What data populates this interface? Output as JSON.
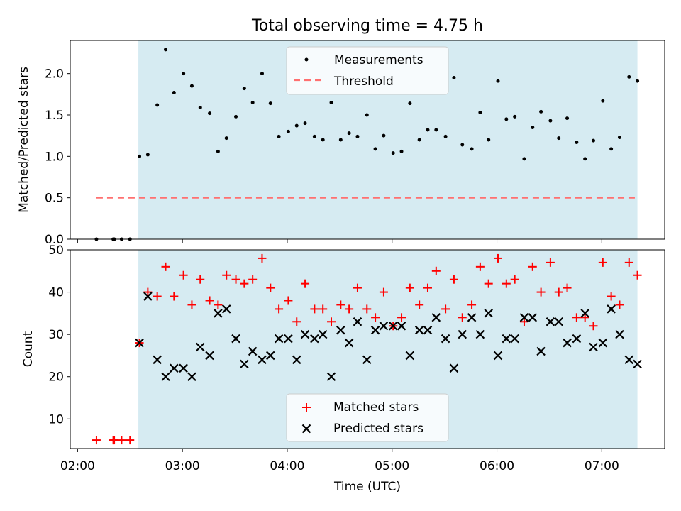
{
  "figure": {
    "title": "Total observing time = 4.75 h",
    "colors": {
      "shade": "#add8e6",
      "threshold": "#ff7070",
      "measurement": "#000000",
      "matched": "#ff0000",
      "predicted": "#000000"
    }
  },
  "chart_data": [
    {
      "type": "scatter",
      "panel": "top",
      "xlabel": "",
      "ylabel": "Matched/Predicted stars",
      "xlim": [
        1.93,
        7.6
      ],
      "ylim": [
        0,
        2.4
      ],
      "yticks": [
        0.0,
        0.5,
        1.0,
        1.5,
        2.0
      ],
      "ytick_labels": [
        "0.0",
        "0.5",
        "1.0",
        "1.5",
        "2.0"
      ],
      "xticks": [
        2,
        3,
        4,
        5,
        6,
        7
      ],
      "shaded_span": [
        2.58,
        7.34
      ],
      "legend": {
        "position": "top-center",
        "entries": [
          "Measurements",
          "Threshold"
        ]
      },
      "series": [
        {
          "name": "Measurements",
          "x": [
            2.18,
            2.34,
            2.35,
            2.42,
            2.5,
            2.59,
            2.67,
            2.76,
            2.84,
            2.92,
            3.01,
            3.09,
            3.17,
            3.26,
            3.34,
            3.42,
            3.51,
            3.59,
            3.67,
            3.76,
            3.84,
            3.92,
            4.01,
            4.09,
            4.17,
            4.26,
            4.34,
            4.42,
            4.51,
            4.59,
            4.67,
            4.76,
            4.84,
            4.92,
            5.01,
            5.09,
            5.17,
            5.26,
            5.34,
            5.42,
            5.51,
            5.59,
            5.67,
            5.76,
            5.84,
            5.92,
            6.01,
            6.09,
            6.17,
            6.26,
            6.34,
            6.42,
            6.51,
            6.59,
            6.67,
            6.76,
            6.84,
            6.92,
            7.01,
            7.09,
            7.17,
            7.26,
            7.34
          ],
          "y": [
            0,
            0,
            0,
            0,
            0,
            1.0,
            1.02,
            1.62,
            2.29,
            1.77,
            2.0,
            1.85,
            1.59,
            1.52,
            1.06,
            1.22,
            1.48,
            1.82,
            1.65,
            2.0,
            1.64,
            1.24,
            1.3,
            1.37,
            1.4,
            1.24,
            1.2,
            1.65,
            1.2,
            1.28,
            1.24,
            1.5,
            1.09,
            1.25,
            1.04,
            1.06,
            1.64,
            1.2,
            1.32,
            1.32,
            1.24,
            1.95,
            1.14,
            1.09,
            1.53,
            1.2,
            1.91,
            1.45,
            1.48,
            0.97,
            1.35,
            1.54,
            1.43,
            1.22,
            1.46,
            1.17,
            0.97,
            1.19,
            1.67,
            1.09,
            1.23,
            1.96,
            1.91
          ]
        },
        {
          "name": "Threshold",
          "x": [
            2.18,
            7.34
          ],
          "y": [
            0.5,
            0.5
          ]
        }
      ]
    },
    {
      "type": "scatter",
      "panel": "bottom",
      "xlabel": "Time (UTC)",
      "ylabel": "Count",
      "xlim": [
        1.93,
        7.6
      ],
      "ylim": [
        3,
        50
      ],
      "yticks": [
        10,
        20,
        30,
        40,
        50
      ],
      "ytick_labels": [
        "10",
        "20",
        "30",
        "40",
        "50"
      ],
      "xticks": [
        2,
        3,
        4,
        5,
        6,
        7
      ],
      "xtick_labels": [
        "02:00",
        "03:00",
        "04:00",
        "05:00",
        "06:00",
        "07:00"
      ],
      "shaded_span": [
        2.58,
        7.34
      ],
      "legend": {
        "position": "bottom-center",
        "entries": [
          "Matched stars",
          "Predicted stars"
        ]
      },
      "series": [
        {
          "name": "Matched stars",
          "x": [
            2.18,
            2.34,
            2.35,
            2.42,
            2.5,
            2.59,
            2.67,
            2.76,
            2.84,
            2.92,
            3.01,
            3.09,
            3.17,
            3.26,
            3.34,
            3.42,
            3.51,
            3.59,
            3.67,
            3.76,
            3.84,
            3.92,
            4.01,
            4.09,
            4.17,
            4.26,
            4.34,
            4.42,
            4.51,
            4.59,
            4.67,
            4.76,
            4.84,
            4.92,
            5.01,
            5.09,
            5.17,
            5.26,
            5.34,
            5.42,
            5.51,
            5.59,
            5.67,
            5.76,
            5.84,
            5.92,
            6.01,
            6.09,
            6.17,
            6.26,
            6.34,
            6.42,
            6.51,
            6.59,
            6.67,
            6.76,
            6.84,
            6.92,
            7.01,
            7.09,
            7.17,
            7.26,
            7.34
          ],
          "y": [
            5,
            5,
            5,
            5,
            5,
            28,
            40,
            39,
            46,
            39,
            44,
            37,
            43,
            38,
            37,
            44,
            43,
            42,
            43,
            48,
            41,
            36,
            38,
            33,
            42,
            36,
            36,
            33,
            37,
            36,
            41,
            36,
            34,
            40,
            32,
            34,
            41,
            37,
            41,
            45,
            36,
            43,
            34,
            37,
            46,
            42,
            48,
            42,
            43,
            33,
            46,
            40,
            47,
            40,
            41,
            34,
            34,
            32,
            47,
            39,
            37,
            47,
            44
          ]
        },
        {
          "name": "Predicted stars",
          "x": [
            2.59,
            2.67,
            2.76,
            2.84,
            2.92,
            3.01,
            3.09,
            3.17,
            3.26,
            3.34,
            3.42,
            3.51,
            3.59,
            3.67,
            3.76,
            3.84,
            3.92,
            4.01,
            4.09,
            4.17,
            4.26,
            4.34,
            4.42,
            4.51,
            4.59,
            4.67,
            4.76,
            4.84,
            4.92,
            5.01,
            5.09,
            5.17,
            5.26,
            5.34,
            5.42,
            5.51,
            5.59,
            5.67,
            5.76,
            5.84,
            5.92,
            6.01,
            6.09,
            6.17,
            6.26,
            6.34,
            6.42,
            6.51,
            6.59,
            6.67,
            6.76,
            6.84,
            6.92,
            7.01,
            7.09,
            7.17,
            7.26,
            7.34
          ],
          "y": [
            28,
            39,
            24,
            20,
            22,
            22,
            20,
            27,
            25,
            35,
            36,
            29,
            23,
            26,
            24,
            25,
            29,
            29,
            24,
            30,
            29,
            30,
            20,
            31,
            28,
            33,
            24,
            31,
            32,
            32,
            32,
            25,
            31,
            31,
            34,
            29,
            22,
            30,
            34,
            30,
            35,
            25,
            29,
            29,
            34,
            34,
            26,
            33,
            33,
            28,
            29,
            35,
            27,
            28,
            36,
            30,
            24,
            23
          ]
        }
      ]
    }
  ]
}
